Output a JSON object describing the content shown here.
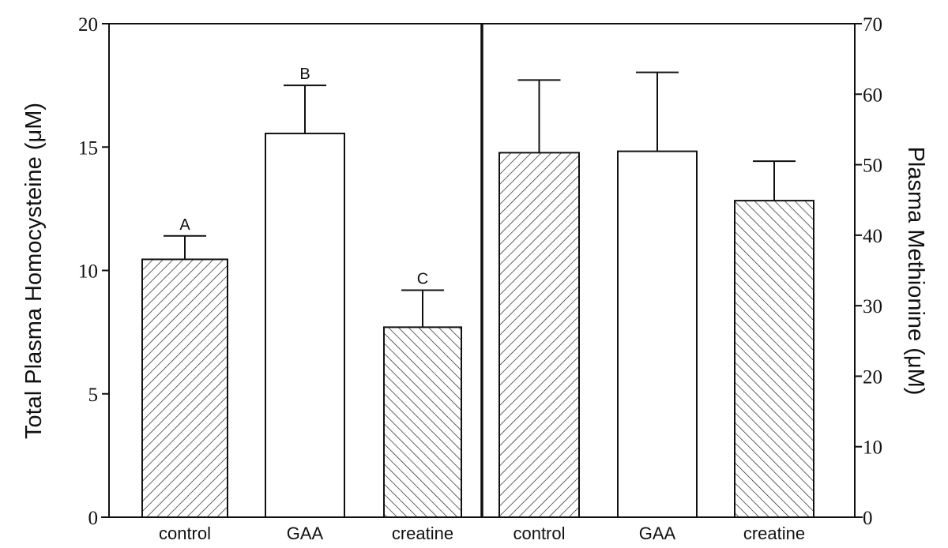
{
  "chart_data": [
    {
      "type": "bar",
      "panel": "left",
      "categories": [
        "control",
        "GAA",
        "creatine"
      ],
      "values": [
        10.45,
        15.55,
        7.7
      ],
      "error_upper": [
        11.4,
        17.5,
        9.2
      ],
      "significance_labels": [
        "A",
        "B",
        "C"
      ],
      "fills": [
        "hatch-back",
        "open",
        "hatch-forward"
      ],
      "ylabel": "Total Plasma Homocysteine (μM)",
      "ylim": [
        0,
        20
      ],
      "yticks": [
        0,
        5,
        10,
        15,
        20
      ],
      "axis_side": "left",
      "grid": false
    },
    {
      "type": "bar",
      "panel": "right",
      "categories": [
        "control",
        "GAA",
        "creatine"
      ],
      "values": [
        51.7,
        51.9,
        44.9
      ],
      "error_upper": [
        62.0,
        63.1,
        50.5
      ],
      "fills": [
        "hatch-back",
        "open",
        "hatch-forward"
      ],
      "ylabel": "Plasma Methionine (μM)",
      "ylim": [
        0,
        70
      ],
      "yticks": [
        0,
        10,
        20,
        30,
        40,
        50,
        60,
        70
      ],
      "axis_side": "right",
      "grid": false
    }
  ],
  "colors": {
    "ink": "#111111",
    "background": "#ffffff"
  }
}
